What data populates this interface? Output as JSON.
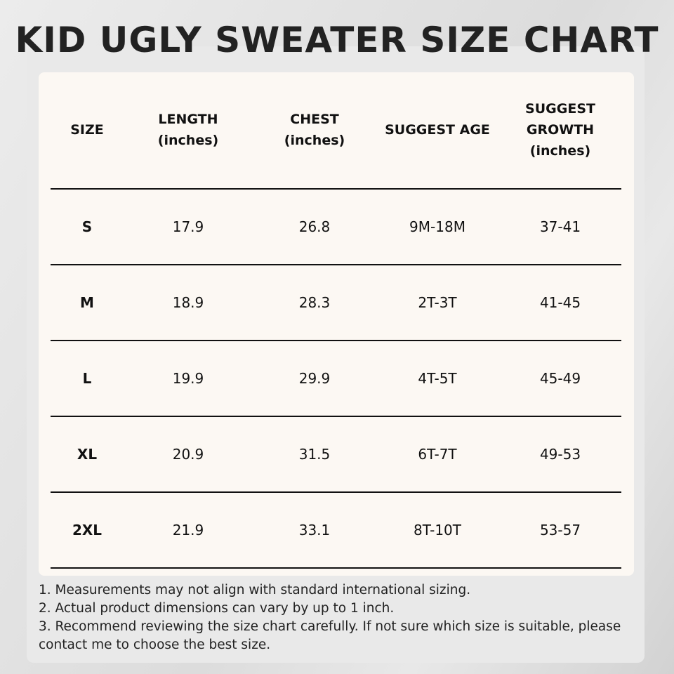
{
  "header": {
    "title": "KID UGLY SWEATER SIZE CHART"
  },
  "table": {
    "headers": [
      [
        "SIZE"
      ],
      [
        "LENGTH",
        "(inches)"
      ],
      [
        "CHEST",
        "(inches)"
      ],
      [
        "SUGGEST AGE"
      ],
      [
        "SUGGEST",
        "GROWTH",
        "(inches)"
      ]
    ],
    "rows": [
      [
        "S",
        "17.9",
        "26.8",
        "9M-18M",
        "37-41"
      ],
      [
        "M",
        "18.9",
        "28.3",
        "2T-3T",
        "41-45"
      ],
      [
        "L",
        "19.9",
        "29.9",
        "4T-5T",
        "45-49"
      ],
      [
        "XL",
        "20.9",
        "31.5",
        "6T-7T",
        "49-53"
      ],
      [
        "2XL",
        "21.9",
        "33.1",
        "8T-10T",
        "53-57"
      ]
    ]
  },
  "notes": [
    "1. Measurements may not align with standard international sizing.",
    "2. Actual product dimensions can vary by up to 1 inch.",
    "3. Recommend reviewing the size chart carefully. If not sure which size is suitable, please contact me to choose the best size."
  ]
}
